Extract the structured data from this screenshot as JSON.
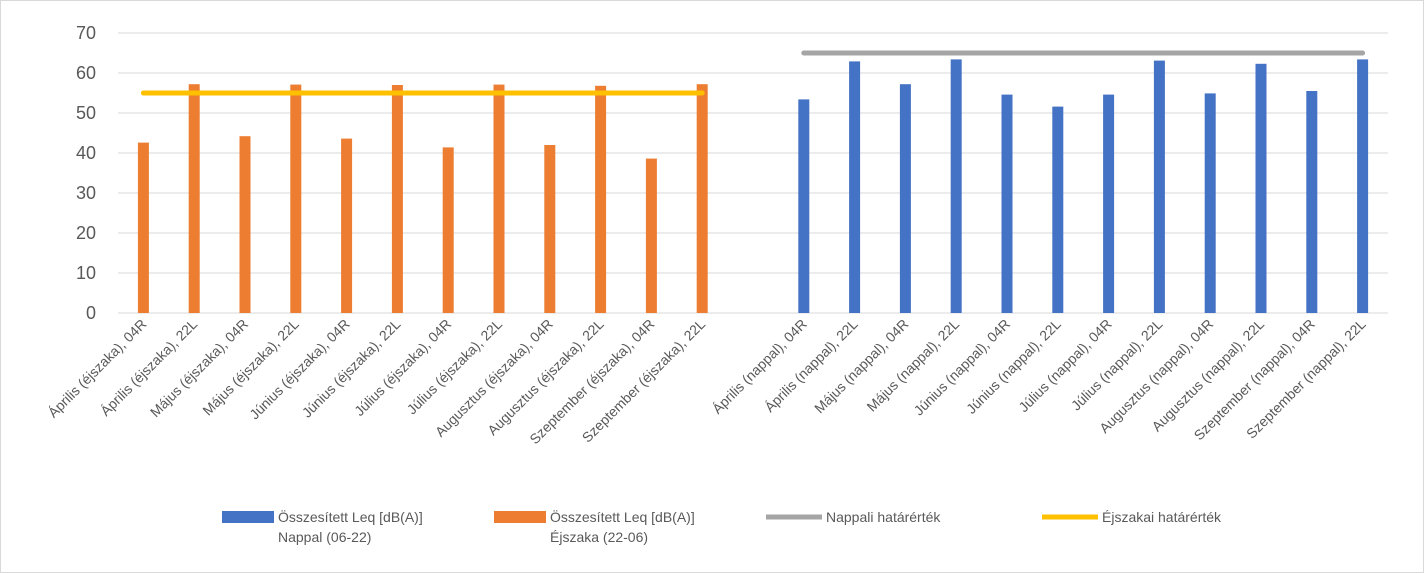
{
  "chart_data": {
    "type": "bar",
    "ylim": [
      0,
      70
    ],
    "yticks": [
      0,
      10,
      20,
      30,
      40,
      50,
      60,
      70
    ],
    "grid": true,
    "legend_placement": "bottom",
    "categories": [
      "Április (éjszaka), 04R",
      "Április (éjszaka), 22L",
      "Május (éjszaka), 04R",
      "Május (éjszaka), 22L",
      "Június (éjszaka), 04R",
      "Június (éjszaka), 22L",
      "Július (éjszaka), 04R",
      "Július (éjszaka), 22L",
      "Augusztus (éjszaka), 04R",
      "Augusztus (éjszaka), 22L",
      "Szeptember (éjszaka), 04R",
      "Szeptember (éjszaka), 22L",
      "",
      "Április (nappal), 04R",
      "Április (nappal), 22L",
      "Május (nappal), 04R",
      "Május (nappal), 22L",
      "Június (nappal), 04R",
      "Június (nappal), 22L",
      "Július (nappal), 04R",
      "Július (nappal), 22L",
      "Augusztus (nappal), 04R",
      "Augusztus (nappal), 22L",
      "Szeptember (nappal), 04R",
      "Szeptember (nappal), 22L"
    ],
    "series": [
      {
        "name": "Összesített Leq [dB(A)] Nappal (06-22)",
        "legend_lines": [
          "Összesített Leq [dB(A)]",
          "Nappal (06-22)"
        ],
        "kind": "bar",
        "color": "#4472c4",
        "values": [
          null,
          null,
          null,
          null,
          null,
          null,
          null,
          null,
          null,
          null,
          null,
          null,
          null,
          53.4,
          62.9,
          57.2,
          63.4,
          54.6,
          51.6,
          54.6,
          63.1,
          54.9,
          62.3,
          55.5,
          63.4
        ]
      },
      {
        "name": "Összesített Leq [dB(A)] Éjszaka (22-06)",
        "legend_lines": [
          "Összesített Leq [dB(A)]",
          "Éjszaka (22-06)"
        ],
        "kind": "bar",
        "color": "#ed7d31",
        "values": [
          42.6,
          57.2,
          44.2,
          57.1,
          43.6,
          57.0,
          41.4,
          57.1,
          42.0,
          56.8,
          38.6,
          57.2,
          null,
          null,
          null,
          null,
          null,
          null,
          null,
          null,
          null,
          null,
          null,
          null,
          null
        ]
      },
      {
        "name": "Nappali határérték",
        "legend_lines": [
          "Nappali határérték"
        ],
        "kind": "line",
        "color": "#a5a5a5",
        "values": [
          null,
          null,
          null,
          null,
          null,
          null,
          null,
          null,
          null,
          null,
          null,
          null,
          null,
          65,
          65,
          65,
          65,
          65,
          65,
          65,
          65,
          65,
          65,
          65,
          65
        ]
      },
      {
        "name": "Éjszakai határérték",
        "legend_lines": [
          "Éjszakai határérték"
        ],
        "kind": "line",
        "color": "#ffc000",
        "values": [
          55,
          55,
          55,
          55,
          55,
          55,
          55,
          55,
          55,
          55,
          55,
          55,
          null,
          null,
          null,
          null,
          null,
          null,
          null,
          null,
          null,
          null,
          null,
          null,
          null
        ]
      }
    ]
  }
}
